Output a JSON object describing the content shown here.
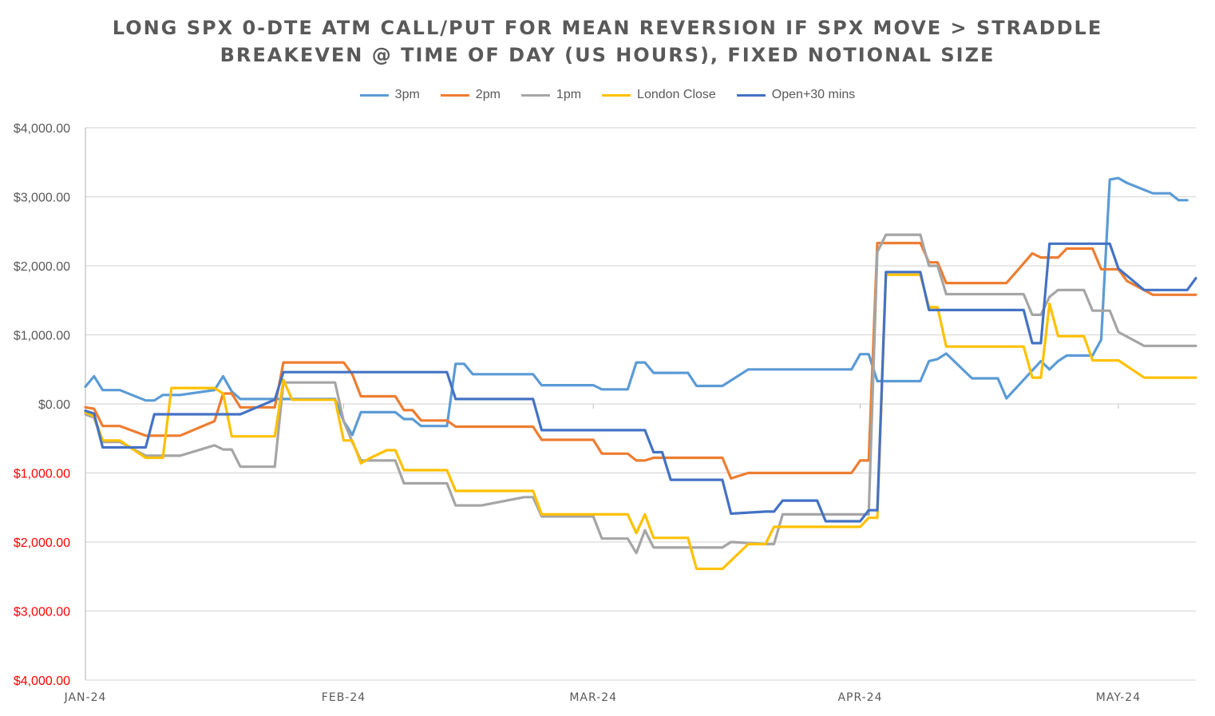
{
  "chart_data": {
    "type": "line",
    "title": [
      "LONG SPX 0-DTE ATM CALL/PUT FOR MEAN REVERSION IF SPX MOVE > STRADDLE",
      "BREAKEVEN @ TIME OF DAY (US HOURS), FIXED NOTIONAL SIZE"
    ],
    "xlabel": "",
    "ylabel": "",
    "ylim": [
      -4000,
      4000
    ],
    "y_ticks": [
      4000,
      3000,
      2000,
      1000,
      0,
      -1000,
      -2000,
      -3000,
      -4000
    ],
    "y_tick_labels": [
      "$4,000.00",
      "$3,000.00",
      "$2,000.00",
      "$1,000.00",
      "$0.00",
      "$1,000.00",
      "$2,000.00",
      "$3,000.00",
      "$4,000.00"
    ],
    "negative_tick_color": "#ff0000",
    "x_ticks": [
      {
        "date": "2024-01-02",
        "label": "JAN-24"
      },
      {
        "date": "2024-02-01",
        "label": "FEB-24"
      },
      {
        "date": "2024-03-01",
        "label": "MAR-24"
      },
      {
        "date": "2024-04-01",
        "label": "APR-24"
      },
      {
        "date": "2024-05-01",
        "label": "MAY-24"
      }
    ],
    "xlim": [
      "2024-01-02",
      "2024-05-10"
    ],
    "grid": "horizontal",
    "legend": "top-center",
    "series": [
      {
        "name": "3pm",
        "color": "#5b9bd5",
        "points": [
          [
            "2024-01-02",
            250
          ],
          [
            "2024-01-03",
            400
          ],
          [
            "2024-01-04",
            200
          ],
          [
            "2024-01-06",
            200
          ],
          [
            "2024-01-09",
            50
          ],
          [
            "2024-01-10",
            50
          ],
          [
            "2024-01-11",
            130
          ],
          [
            "2024-01-13",
            130
          ],
          [
            "2024-01-17",
            200
          ],
          [
            "2024-01-18",
            400
          ],
          [
            "2024-01-19",
            180
          ],
          [
            "2024-01-20",
            70
          ],
          [
            "2024-01-24",
            70
          ],
          [
            "2024-01-25",
            70
          ],
          [
            "2024-01-31",
            70
          ],
          [
            "2024-02-01",
            -250
          ],
          [
            "2024-02-02",
            -450
          ],
          [
            "2024-02-03",
            -120
          ],
          [
            "2024-02-07",
            -120
          ],
          [
            "2024-02-08",
            -220
          ],
          [
            "2024-02-09",
            -220
          ],
          [
            "2024-02-10",
            -320
          ],
          [
            "2024-02-13",
            -320
          ],
          [
            "2024-02-14",
            580
          ],
          [
            "2024-02-15",
            580
          ],
          [
            "2024-02-16",
            430
          ],
          [
            "2024-02-23",
            430
          ],
          [
            "2024-02-24",
            270
          ],
          [
            "2024-02-29",
            270
          ],
          [
            "2024-03-01",
            270
          ],
          [
            "2024-03-02",
            210
          ],
          [
            "2024-03-05",
            210
          ],
          [
            "2024-03-06",
            600
          ],
          [
            "2024-03-07",
            600
          ],
          [
            "2024-03-08",
            450
          ],
          [
            "2024-03-12",
            450
          ],
          [
            "2024-03-13",
            260
          ],
          [
            "2024-03-16",
            260
          ],
          [
            "2024-03-19",
            500
          ],
          [
            "2024-03-31",
            500
          ],
          [
            "2024-04-01",
            720
          ],
          [
            "2024-04-02",
            720
          ],
          [
            "2024-04-03",
            330
          ],
          [
            "2024-04-08",
            330
          ],
          [
            "2024-04-09",
            620
          ],
          [
            "2024-04-10",
            650
          ],
          [
            "2024-04-11",
            730
          ],
          [
            "2024-04-14",
            370
          ],
          [
            "2024-04-17",
            370
          ],
          [
            "2024-04-18",
            80
          ],
          [
            "2024-04-22",
            620
          ],
          [
            "2024-04-23",
            500
          ],
          [
            "2024-04-24",
            620
          ],
          [
            "2024-04-25",
            700
          ],
          [
            "2024-04-28",
            700
          ],
          [
            "2024-04-29",
            930
          ],
          [
            "2024-04-30",
            3250
          ],
          [
            "2024-05-01",
            3270
          ],
          [
            "2024-05-02",
            3200
          ],
          [
            "2024-05-03",
            3150
          ],
          [
            "2024-05-05",
            3050
          ],
          [
            "2024-05-07",
            3050
          ],
          [
            "2024-05-08",
            2950
          ],
          [
            "2024-05-09",
            2950
          ]
        ]
      },
      {
        "name": "2pm",
        "color": "#ed7d31",
        "points": [
          [
            "2024-01-02",
            -50
          ],
          [
            "2024-01-03",
            -70
          ],
          [
            "2024-01-04",
            -320
          ],
          [
            "2024-01-06",
            -320
          ],
          [
            "2024-01-09",
            -460
          ],
          [
            "2024-01-13",
            -460
          ],
          [
            "2024-01-17",
            -250
          ],
          [
            "2024-01-18",
            150
          ],
          [
            "2024-01-19",
            150
          ],
          [
            "2024-01-20",
            -50
          ],
          [
            "2024-01-24",
            -50
          ],
          [
            "2024-01-25",
            600
          ],
          [
            "2024-02-01",
            600
          ],
          [
            "2024-02-02",
            430
          ],
          [
            "2024-02-03",
            110
          ],
          [
            "2024-02-07",
            110
          ],
          [
            "2024-02-08",
            -90
          ],
          [
            "2024-02-09",
            -90
          ],
          [
            "2024-02-10",
            -240
          ],
          [
            "2024-02-13",
            -240
          ],
          [
            "2024-02-14",
            -330
          ],
          [
            "2024-02-23",
            -330
          ],
          [
            "2024-02-24",
            -520
          ],
          [
            "2024-03-01",
            -520
          ],
          [
            "2024-03-02",
            -720
          ],
          [
            "2024-03-05",
            -720
          ],
          [
            "2024-03-06",
            -820
          ],
          [
            "2024-03-07",
            -820
          ],
          [
            "2024-03-08",
            -780
          ],
          [
            "2024-03-16",
            -780
          ],
          [
            "2024-03-17",
            -1080
          ],
          [
            "2024-03-19",
            -1000
          ],
          [
            "2024-03-31",
            -1000
          ],
          [
            "2024-04-01",
            -820
          ],
          [
            "2024-04-02",
            -820
          ],
          [
            "2024-04-03",
            2330
          ],
          [
            "2024-04-08",
            2330
          ],
          [
            "2024-04-09",
            2050
          ],
          [
            "2024-04-10",
            2050
          ],
          [
            "2024-04-11",
            1750
          ],
          [
            "2024-04-18",
            1750
          ],
          [
            "2024-04-21",
            2180
          ],
          [
            "2024-04-22",
            2120
          ],
          [
            "2024-04-24",
            2120
          ],
          [
            "2024-04-25",
            2250
          ],
          [
            "2024-04-28",
            2250
          ],
          [
            "2024-04-29",
            1950
          ],
          [
            "2024-05-01",
            1950
          ],
          [
            "2024-05-02",
            1780
          ],
          [
            "2024-05-05",
            1580
          ],
          [
            "2024-05-10",
            1580
          ]
        ]
      },
      {
        "name": "1pm",
        "color": "#a5a5a5",
        "points": [
          [
            "2024-01-02",
            -150
          ],
          [
            "2024-01-03",
            -200
          ],
          [
            "2024-01-04",
            -550
          ],
          [
            "2024-01-06",
            -550
          ],
          [
            "2024-01-09",
            -750
          ],
          [
            "2024-01-13",
            -750
          ],
          [
            "2024-01-17",
            -600
          ],
          [
            "2024-01-18",
            -660
          ],
          [
            "2024-01-19",
            -660
          ],
          [
            "2024-01-20",
            -910
          ],
          [
            "2024-01-24",
            -910
          ],
          [
            "2024-01-25",
            310
          ],
          [
            "2024-01-31",
            310
          ],
          [
            "2024-02-01",
            -250
          ],
          [
            "2024-02-02",
            -550
          ],
          [
            "2024-02-03",
            -820
          ],
          [
            "2024-02-07",
            -820
          ],
          [
            "2024-02-08",
            -1150
          ],
          [
            "2024-02-13",
            -1150
          ],
          [
            "2024-02-14",
            -1470
          ],
          [
            "2024-02-17",
            -1470
          ],
          [
            "2024-02-22",
            -1350
          ],
          [
            "2024-02-23",
            -1350
          ],
          [
            "2024-02-24",
            -1630
          ],
          [
            "2024-03-01",
            -1630
          ],
          [
            "2024-03-02",
            -1950
          ],
          [
            "2024-03-05",
            -1950
          ],
          [
            "2024-03-06",
            -2160
          ],
          [
            "2024-03-07",
            -1830
          ],
          [
            "2024-03-08",
            -2080
          ],
          [
            "2024-03-16",
            -2080
          ],
          [
            "2024-03-17",
            -2000
          ],
          [
            "2024-03-21",
            -2030
          ],
          [
            "2024-03-22",
            -2030
          ],
          [
            "2024-03-23",
            -1600
          ],
          [
            "2024-04-01",
            -1600
          ],
          [
            "2024-04-02",
            -1600
          ],
          [
            "2024-04-03",
            2200
          ],
          [
            "2024-04-04",
            2450
          ],
          [
            "2024-04-08",
            2450
          ],
          [
            "2024-04-09",
            2000
          ],
          [
            "2024-04-10",
            2000
          ],
          [
            "2024-04-11",
            1590
          ],
          [
            "2024-04-20",
            1590
          ],
          [
            "2024-04-21",
            1290
          ],
          [
            "2024-04-22",
            1290
          ],
          [
            "2024-04-23",
            1550
          ],
          [
            "2024-04-24",
            1650
          ],
          [
            "2024-04-27",
            1650
          ],
          [
            "2024-04-28",
            1350
          ],
          [
            "2024-04-30",
            1350
          ],
          [
            "2024-05-01",
            1040
          ],
          [
            "2024-05-04",
            840
          ],
          [
            "2024-05-10",
            840
          ]
        ]
      },
      {
        "name": "London Close",
        "color": "#ffc000",
        "points": [
          [
            "2024-01-02",
            -120
          ],
          [
            "2024-01-03",
            -180
          ],
          [
            "2024-01-04",
            -530
          ],
          [
            "2024-01-06",
            -530
          ],
          [
            "2024-01-09",
            -780
          ],
          [
            "2024-01-11",
            -780
          ],
          [
            "2024-01-12",
            230
          ],
          [
            "2024-01-17",
            230
          ],
          [
            "2024-01-18",
            150
          ],
          [
            "2024-01-19",
            -470
          ],
          [
            "2024-01-24",
            -470
          ],
          [
            "2024-01-25",
            350
          ],
          [
            "2024-01-26",
            60
          ],
          [
            "2024-01-31",
            60
          ],
          [
            "2024-02-01",
            -530
          ],
          [
            "2024-02-02",
            -530
          ],
          [
            "2024-02-03",
            -860
          ],
          [
            "2024-02-04",
            -790
          ],
          [
            "2024-02-06",
            -670
          ],
          [
            "2024-02-07",
            -670
          ],
          [
            "2024-02-08",
            -960
          ],
          [
            "2024-02-13",
            -960
          ],
          [
            "2024-02-14",
            -1260
          ],
          [
            "2024-02-23",
            -1260
          ],
          [
            "2024-02-24",
            -1600
          ],
          [
            "2024-03-05",
            -1600
          ],
          [
            "2024-03-06",
            -1870
          ],
          [
            "2024-03-07",
            -1600
          ],
          [
            "2024-03-08",
            -1940
          ],
          [
            "2024-03-12",
            -1940
          ],
          [
            "2024-03-13",
            -2390
          ],
          [
            "2024-03-16",
            -2390
          ],
          [
            "2024-03-19",
            -2030
          ],
          [
            "2024-03-21",
            -2030
          ],
          [
            "2024-03-22",
            -1780
          ],
          [
            "2024-04-01",
            -1780
          ],
          [
            "2024-04-02",
            -1650
          ],
          [
            "2024-04-03",
            -1650
          ],
          [
            "2024-04-04",
            1870
          ],
          [
            "2024-04-08",
            1870
          ],
          [
            "2024-04-09",
            1400
          ],
          [
            "2024-04-10",
            1400
          ],
          [
            "2024-04-11",
            830
          ],
          [
            "2024-04-20",
            830
          ],
          [
            "2024-04-21",
            380
          ],
          [
            "2024-04-22",
            380
          ],
          [
            "2024-04-23",
            1450
          ],
          [
            "2024-04-24",
            980
          ],
          [
            "2024-04-27",
            980
          ],
          [
            "2024-04-28",
            630
          ],
          [
            "2024-05-01",
            630
          ],
          [
            "2024-05-04",
            380
          ],
          [
            "2024-05-10",
            380
          ]
        ]
      },
      {
        "name": "Open+30 mins",
        "color": "#4472c4",
        "points": [
          [
            "2024-01-02",
            -100
          ],
          [
            "2024-01-03",
            -140
          ],
          [
            "2024-01-04",
            -630
          ],
          [
            "2024-01-09",
            -630
          ],
          [
            "2024-01-10",
            -150
          ],
          [
            "2024-01-17",
            -150
          ],
          [
            "2024-01-20",
            -150
          ],
          [
            "2024-01-24",
            60
          ],
          [
            "2024-01-25",
            460
          ],
          [
            "2024-02-13",
            460
          ],
          [
            "2024-02-14",
            70
          ],
          [
            "2024-02-23",
            70
          ],
          [
            "2024-02-24",
            -380
          ],
          [
            "2024-03-07",
            -380
          ],
          [
            "2024-03-08",
            -700
          ],
          [
            "2024-03-09",
            -700
          ],
          [
            "2024-03-10",
            -1100
          ],
          [
            "2024-03-16",
            -1100
          ],
          [
            "2024-03-17",
            -1590
          ],
          [
            "2024-03-21",
            -1560
          ],
          [
            "2024-03-22",
            -1560
          ],
          [
            "2024-03-23",
            -1400
          ],
          [
            "2024-03-27",
            -1400
          ],
          [
            "2024-03-28",
            -1700
          ],
          [
            "2024-04-01",
            -1700
          ],
          [
            "2024-04-02",
            -1540
          ],
          [
            "2024-04-03",
            -1540
          ],
          [
            "2024-04-04",
            1910
          ],
          [
            "2024-04-08",
            1910
          ],
          [
            "2024-04-09",
            1360
          ],
          [
            "2024-04-20",
            1360
          ],
          [
            "2024-04-21",
            880
          ],
          [
            "2024-04-22",
            880
          ],
          [
            "2024-04-23",
            2320
          ],
          [
            "2024-04-30",
            2320
          ],
          [
            "2024-05-01",
            1960
          ],
          [
            "2024-05-04",
            1650
          ],
          [
            "2024-05-07",
            1650
          ],
          [
            "2024-05-09",
            1650
          ],
          [
            "2024-05-10",
            1820
          ]
        ]
      }
    ]
  }
}
